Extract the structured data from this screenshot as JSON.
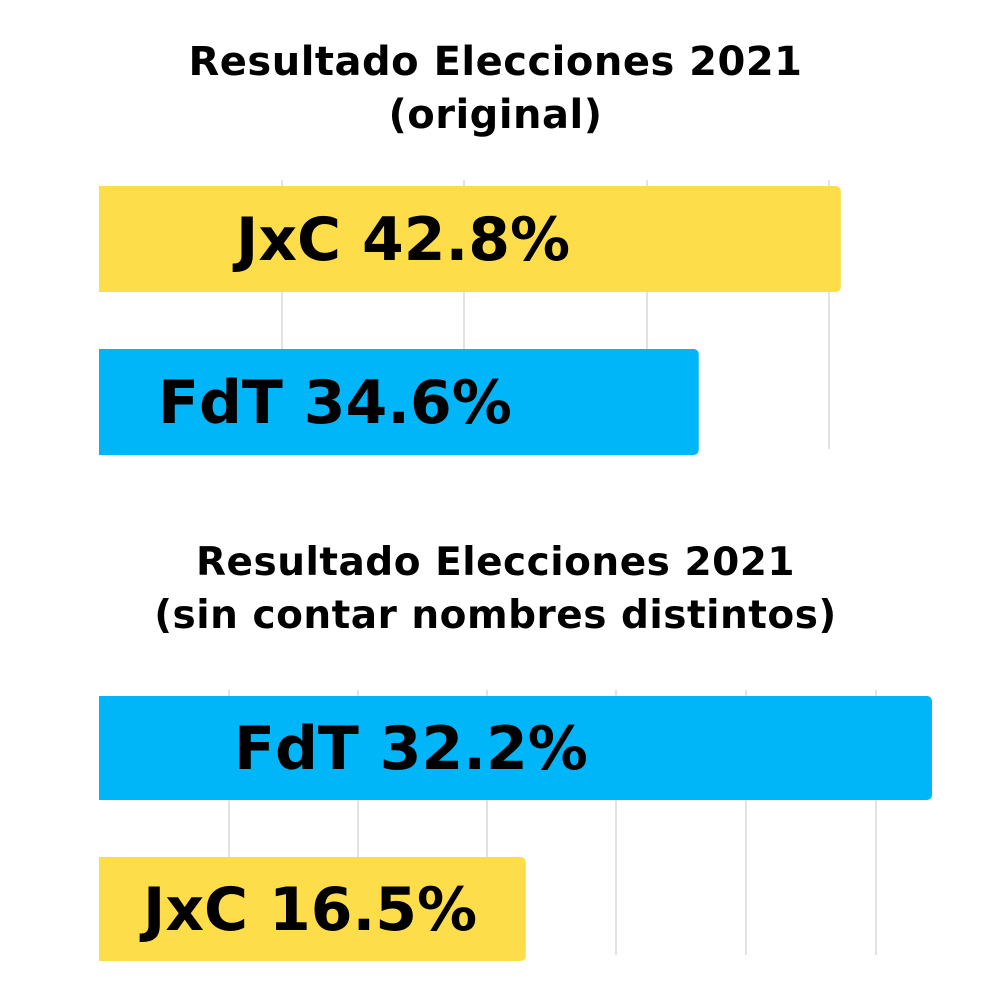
{
  "colors": {
    "jxc": "#fddd4a",
    "fdt": "#00b5f8",
    "gridline": "#d9d9d9"
  },
  "chart_data": [
    {
      "type": "bar",
      "orientation": "horizontal",
      "title_lines": [
        "Resultado Elecciones 2021",
        "(original)"
      ],
      "categories": [
        "JxC",
        "FdT"
      ],
      "values": [
        42.8,
        34.6
      ],
      "labels": [
        "JxC 42.8%",
        "FdT 34.6%"
      ],
      "bar_colors": [
        "#fddd4a",
        "#00b5f8"
      ],
      "unit": "%",
      "xlim": [
        0,
        45
      ],
      "grid": true,
      "legend": "none"
    },
    {
      "type": "bar",
      "orientation": "horizontal",
      "title_lines": [
        "Resultado Elecciones 2021",
        "(sin contar nombres distintos)"
      ],
      "categories": [
        "FdT",
        "JxC"
      ],
      "values": [
        32.2,
        16.5
      ],
      "labels": [
        "FdT  32.2%",
        "JxC 16.5%"
      ],
      "bar_colors": [
        "#00b5f8",
        "#fddd4a"
      ],
      "unit": "%",
      "xlim": [
        0,
        32.2
      ],
      "grid": true,
      "legend": "none"
    }
  ]
}
